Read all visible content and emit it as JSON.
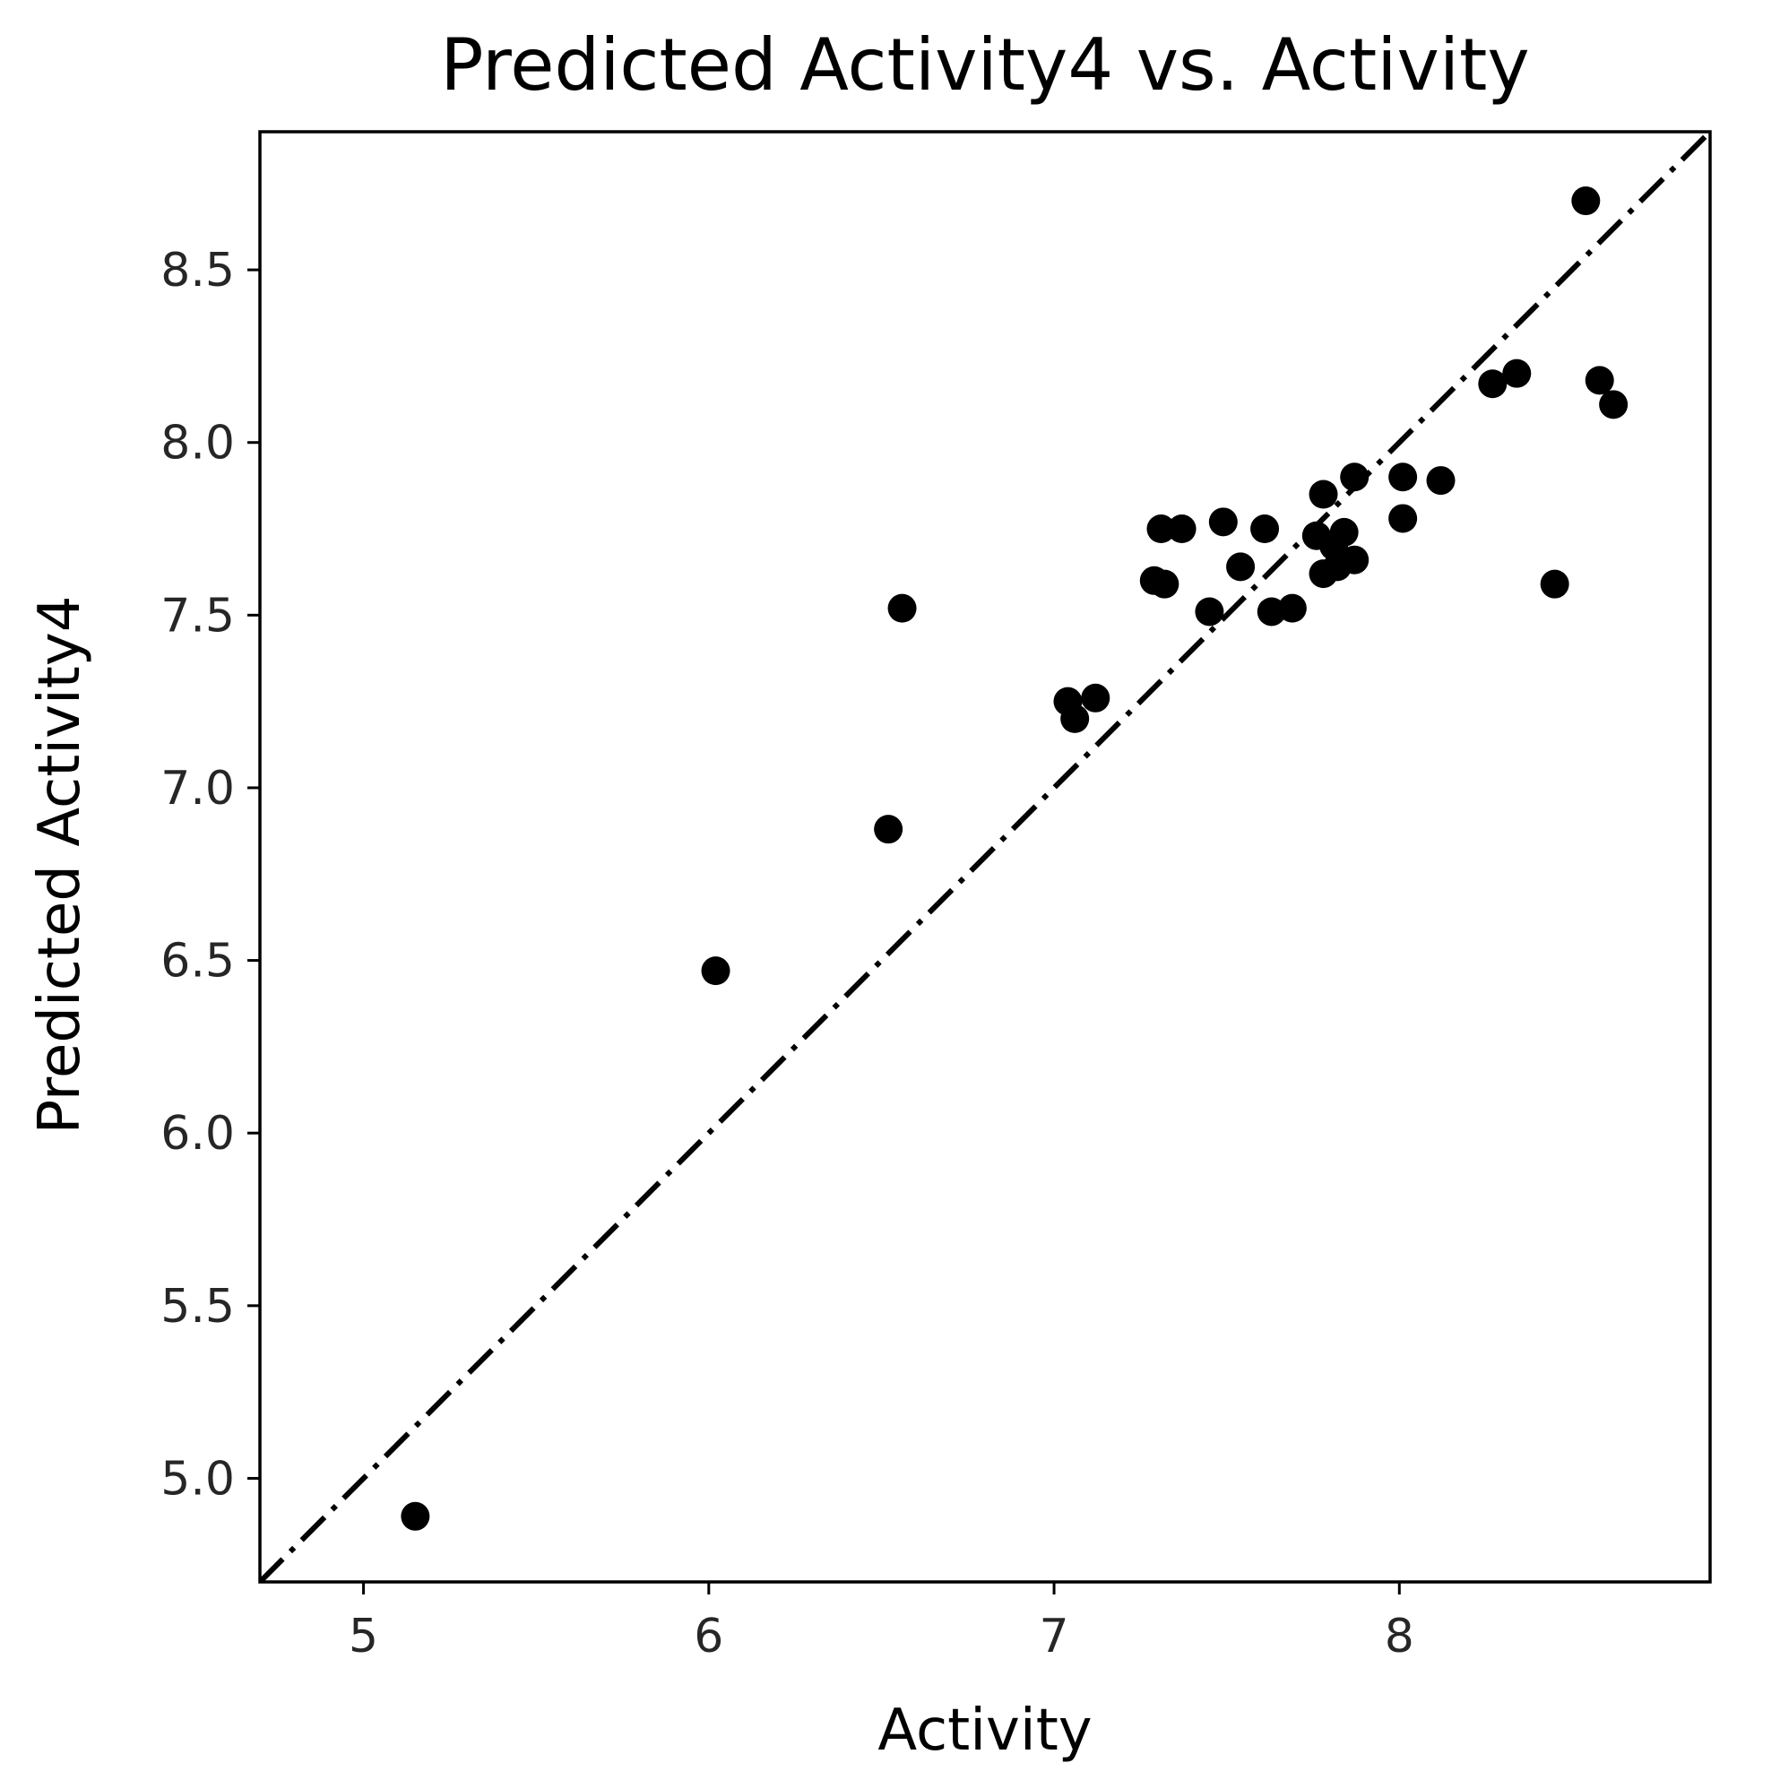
{
  "chart_data": {
    "type": "scatter",
    "title": "Predicted Activity4 vs. Activity",
    "xlabel": "Activity",
    "ylabel": "Predicted Activity4",
    "xlim": [
      4.7,
      8.9
    ],
    "ylim": [
      4.7,
      8.9
    ],
    "xticks": [
      5,
      6,
      7,
      8
    ],
    "xtick_labels": [
      "5",
      "6",
      "7",
      "8"
    ],
    "yticks": [
      5.0,
      5.5,
      6.0,
      6.5,
      7.0,
      7.5,
      8.0,
      8.5
    ],
    "ytick_labels": [
      "5.0",
      "5.5",
      "6.0",
      "6.5",
      "7.0",
      "7.5",
      "8.0",
      "8.5"
    ],
    "grid": false,
    "legend": "none",
    "marker_color": "#000000",
    "reference_line": {
      "style": "dash-dot",
      "color": "#000000",
      "from": [
        4.7,
        4.7
      ],
      "to": [
        8.9,
        8.9
      ]
    },
    "points": [
      {
        "x": 5.15,
        "y": 4.89
      },
      {
        "x": 6.02,
        "y": 6.47
      },
      {
        "x": 6.52,
        "y": 6.88
      },
      {
        "x": 6.56,
        "y": 7.52
      },
      {
        "x": 7.04,
        "y": 7.25
      },
      {
        "x": 7.06,
        "y": 7.2
      },
      {
        "x": 7.12,
        "y": 7.26
      },
      {
        "x": 7.29,
        "y": 7.6
      },
      {
        "x": 7.32,
        "y": 7.59
      },
      {
        "x": 7.31,
        "y": 7.75
      },
      {
        "x": 7.37,
        "y": 7.75
      },
      {
        "x": 7.45,
        "y": 7.51
      },
      {
        "x": 7.49,
        "y": 7.77
      },
      {
        "x": 7.54,
        "y": 7.64
      },
      {
        "x": 7.61,
        "y": 7.75
      },
      {
        "x": 7.63,
        "y": 7.51
      },
      {
        "x": 7.69,
        "y": 7.52
      },
      {
        "x": 7.76,
        "y": 7.73
      },
      {
        "x": 7.78,
        "y": 7.85
      },
      {
        "x": 7.78,
        "y": 7.62
      },
      {
        "x": 7.81,
        "y": 7.7
      },
      {
        "x": 7.82,
        "y": 7.64
      },
      {
        "x": 7.84,
        "y": 7.74
      },
      {
        "x": 7.87,
        "y": 7.66
      },
      {
        "x": 7.87,
        "y": 7.9
      },
      {
        "x": 8.01,
        "y": 7.9
      },
      {
        "x": 8.01,
        "y": 7.78
      },
      {
        "x": 8.12,
        "y": 7.89
      },
      {
        "x": 8.27,
        "y": 8.17
      },
      {
        "x": 8.34,
        "y": 8.2
      },
      {
        "x": 8.45,
        "y": 7.59
      },
      {
        "x": 8.54,
        "y": 8.7
      },
      {
        "x": 8.58,
        "y": 8.18
      },
      {
        "x": 8.62,
        "y": 8.11
      }
    ]
  }
}
